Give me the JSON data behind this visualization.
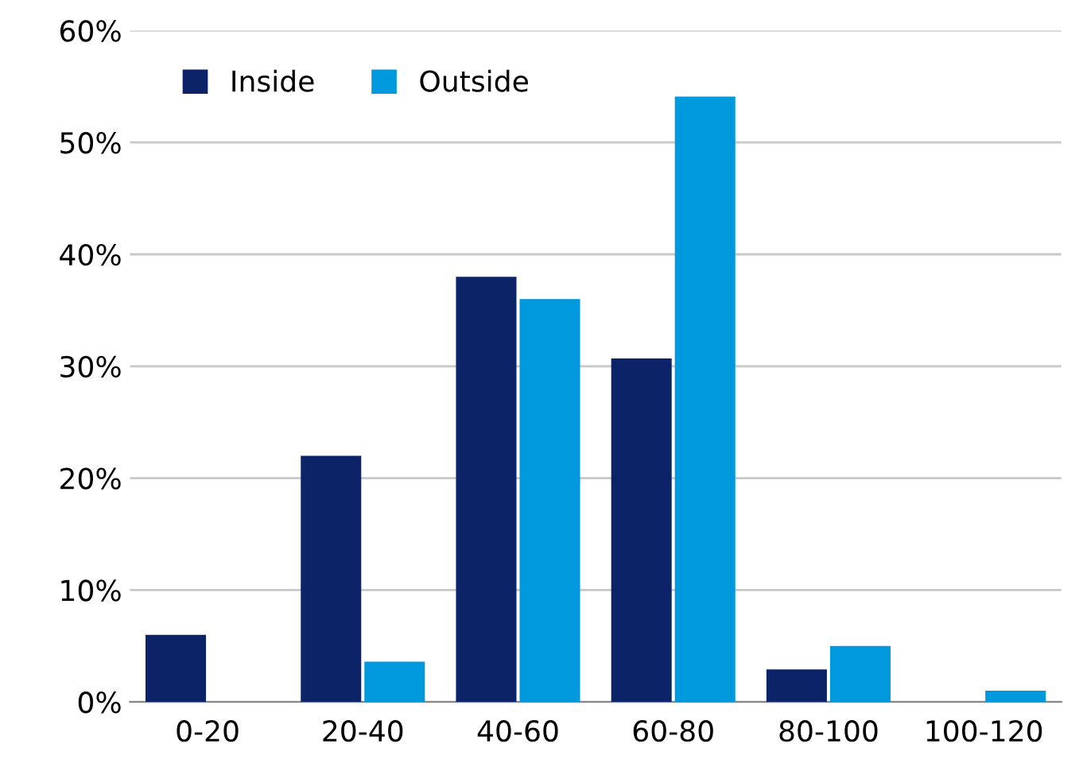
{
  "chart_data": {
    "type": "bar",
    "categories": [
      "0-20",
      "20-40",
      "40-60",
      "60-80",
      "80-100",
      "100-120"
    ],
    "series": [
      {
        "name": "Inside",
        "color": "#0c2368",
        "values": [
          6.0,
          22.0,
          38.0,
          30.7,
          2.9,
          0
        ]
      },
      {
        "name": "Outside",
        "color": "#0099dd",
        "values": [
          0,
          3.6,
          36.0,
          54.1,
          5.0,
          1.0
        ]
      }
    ],
    "ylim": [
      0,
      60
    ],
    "yticks": [
      {
        "value": 0,
        "label": "0%"
      },
      {
        "value": 10,
        "label": "10%"
      },
      {
        "value": 20,
        "label": "20%"
      },
      {
        "value": 30,
        "label": "30%"
      },
      {
        "value": 40,
        "label": "40%"
      },
      {
        "value": 50,
        "label": "50%"
      },
      {
        "value": 60,
        "label": "60%"
      }
    ],
    "grid": "y",
    "legend": "top left"
  }
}
